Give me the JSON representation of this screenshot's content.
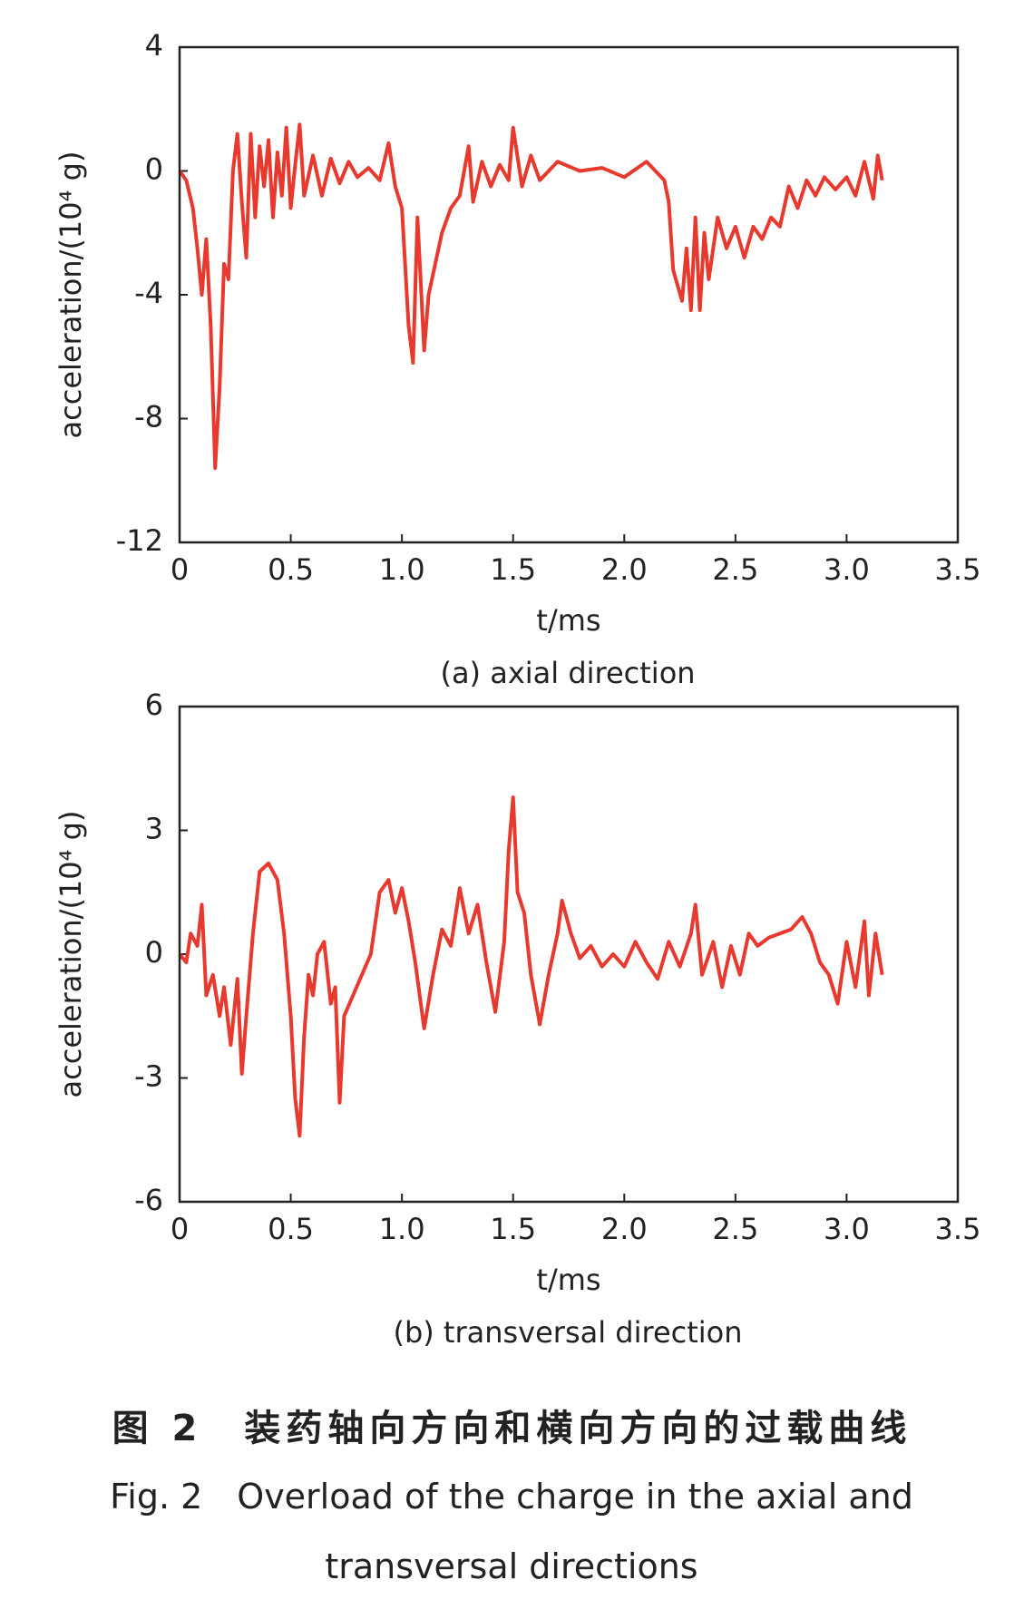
{
  "chart_data": [
    {
      "type": "line",
      "caption": "(a) axial direction",
      "xlabel": "t/ms",
      "ylabel": "acceleration/(10⁴ g)",
      "xlim": [
        0,
        3.5
      ],
      "xticks": [
        0,
        0.5,
        {
          "value": 1,
          "label": "1.0"
        },
        1.5,
        {
          "value": 2,
          "label": "2.0"
        },
        2.5,
        {
          "value": 3,
          "label": "3.0"
        },
        3.5
      ],
      "ylim": [
        -12,
        4
      ],
      "yticks": [
        -12,
        -8,
        -4,
        0,
        4
      ],
      "series": [
        {
          "color": "#e8392f",
          "x": [
            0,
            0.03,
            0.06,
            0.08,
            0.1,
            0.12,
            0.14,
            0.16,
            0.18,
            0.2,
            0.22,
            0.24,
            0.26,
            0.28,
            0.3,
            0.32,
            0.34,
            0.36,
            0.38,
            0.4,
            0.42,
            0.44,
            0.46,
            0.48,
            0.5,
            0.52,
            0.54,
            0.56,
            0.6,
            0.64,
            0.68,
            0.72,
            0.76,
            0.8,
            0.85,
            0.9,
            0.94,
            0.97,
            1.0,
            1.03,
            1.05,
            1.07,
            1.1,
            1.12,
            1.15,
            1.18,
            1.22,
            1.26,
            1.3,
            1.32,
            1.36,
            1.4,
            1.44,
            1.48,
            1.5,
            1.54,
            1.58,
            1.62,
            1.7,
            1.8,
            1.9,
            2.0,
            2.1,
            2.18,
            2.2,
            2.22,
            2.26,
            2.28,
            2.3,
            2.32,
            2.34,
            2.36,
            2.38,
            2.42,
            2.46,
            2.5,
            2.54,
            2.58,
            2.62,
            2.66,
            2.7,
            2.74,
            2.78,
            2.82,
            2.86,
            2.9,
            2.95,
            3.0,
            3.04,
            3.08,
            3.12,
            3.14,
            3.16
          ],
          "values": [
            0,
            -0.3,
            -1.2,
            -2.5,
            -4,
            -2.2,
            -5,
            -9.6,
            -7,
            -3,
            -3.5,
            0,
            1.2,
            -1,
            -2.8,
            1.2,
            -1.5,
            0.8,
            -0.5,
            1,
            -1.5,
            0.6,
            -0.8,
            1.4,
            -1.2,
            0.2,
            1.5,
            -0.8,
            0.5,
            -0.8,
            0.4,
            -0.4,
            0.3,
            -0.2,
            0.1,
            -0.3,
            0.9,
            -0.5,
            -1.2,
            -5,
            -6.2,
            -1.5,
            -5.8,
            -4,
            -3,
            -2,
            -1.2,
            -0.8,
            0.8,
            -1,
            0.3,
            -0.5,
            0.2,
            -0.3,
            1.4,
            -0.5,
            0.5,
            -0.3,
            0.3,
            0,
            0.1,
            -0.2,
            0.3,
            -0.3,
            -1,
            -3.2,
            -4.2,
            -2.5,
            -4.5,
            -1.5,
            -4.5,
            -2,
            -3.5,
            -1.5,
            -2.5,
            -1.8,
            -2.8,
            -1.8,
            -2.2,
            -1.5,
            -1.8,
            -0.5,
            -1.2,
            -0.3,
            -0.8,
            -0.2,
            -0.6,
            -0.2,
            -0.8,
            0.3,
            -0.9,
            0.5,
            -0.3
          ]
        }
      ]
    },
    {
      "type": "line",
      "caption": "(b) transversal direction",
      "xlabel": "t/ms",
      "ylabel": "acceleration/(10⁴ g)",
      "xlim": [
        0,
        3.5
      ],
      "xticks": [
        0,
        0.5,
        {
          "value": 1,
          "label": "1.0"
        },
        1.5,
        {
          "value": 2,
          "label": "2.0"
        },
        2.5,
        {
          "value": 3,
          "label": "3.0"
        },
        3.5
      ],
      "ylim": [
        -6,
        6
      ],
      "yticks": [
        -6,
        -3,
        0,
        3,
        6
      ],
      "series": [
        {
          "color": "#e8392f",
          "x": [
            0,
            0.03,
            0.05,
            0.08,
            0.1,
            0.12,
            0.15,
            0.18,
            0.2,
            0.23,
            0.26,
            0.28,
            0.3,
            0.33,
            0.36,
            0.4,
            0.44,
            0.47,
            0.5,
            0.52,
            0.54,
            0.56,
            0.58,
            0.6,
            0.62,
            0.65,
            0.68,
            0.7,
            0.72,
            0.74,
            0.78,
            0.82,
            0.86,
            0.9,
            0.94,
            0.97,
            1.0,
            1.03,
            1.06,
            1.1,
            1.14,
            1.18,
            1.22,
            1.26,
            1.3,
            1.34,
            1.38,
            1.42,
            1.46,
            1.48,
            1.5,
            1.52,
            1.55,
            1.58,
            1.62,
            1.66,
            1.7,
            1.72,
            1.76,
            1.8,
            1.85,
            1.9,
            1.95,
            2.0,
            2.05,
            2.1,
            2.15,
            2.2,
            2.25,
            2.3,
            2.32,
            2.35,
            2.4,
            2.44,
            2.48,
            2.52,
            2.56,
            2.6,
            2.65,
            2.7,
            2.75,
            2.8,
            2.84,
            2.88,
            2.92,
            2.96,
            3.0,
            3.04,
            3.08,
            3.1,
            3.13,
            3.16
          ],
          "values": [
            0,
            -0.2,
            0.5,
            0.2,
            1.2,
            -1,
            -0.5,
            -1.5,
            -0.8,
            -2.2,
            -0.6,
            -2.9,
            -1.5,
            0.5,
            2,
            2.2,
            1.8,
            0.5,
            -1.5,
            -3.5,
            -4.4,
            -2,
            -0.5,
            -1,
            0,
            0.3,
            -1.2,
            -0.8,
            -3.6,
            -1.5,
            -1,
            -0.5,
            0,
            1.5,
            1.8,
            1,
            1.6,
            0.8,
            -0.2,
            -1.8,
            -0.5,
            0.6,
            0.2,
            1.6,
            0.5,
            1.2,
            -0.2,
            -1.4,
            0.3,
            2.5,
            3.8,
            1.5,
            1,
            -0.5,
            -1.7,
            -0.5,
            0.5,
            1.3,
            0.5,
            -0.1,
            0.2,
            -0.3,
            0,
            -0.3,
            0.3,
            -0.2,
            -0.6,
            0.3,
            -0.3,
            0.5,
            1.2,
            -0.5,
            0.3,
            -0.8,
            0.2,
            -0.5,
            0.5,
            0.2,
            0.4,
            0.5,
            0.6,
            0.9,
            0.5,
            -0.2,
            -0.5,
            -1.2,
            0.3,
            -0.8,
            0.8,
            -1,
            0.5,
            -0.5
          ]
        }
      ]
    }
  ],
  "figure_caption": {
    "zh": "图 2　装药轴向方向和横向方向的过载曲线",
    "en": "Fig. 2　Overload of the charge in the axial and transversal directions"
  }
}
